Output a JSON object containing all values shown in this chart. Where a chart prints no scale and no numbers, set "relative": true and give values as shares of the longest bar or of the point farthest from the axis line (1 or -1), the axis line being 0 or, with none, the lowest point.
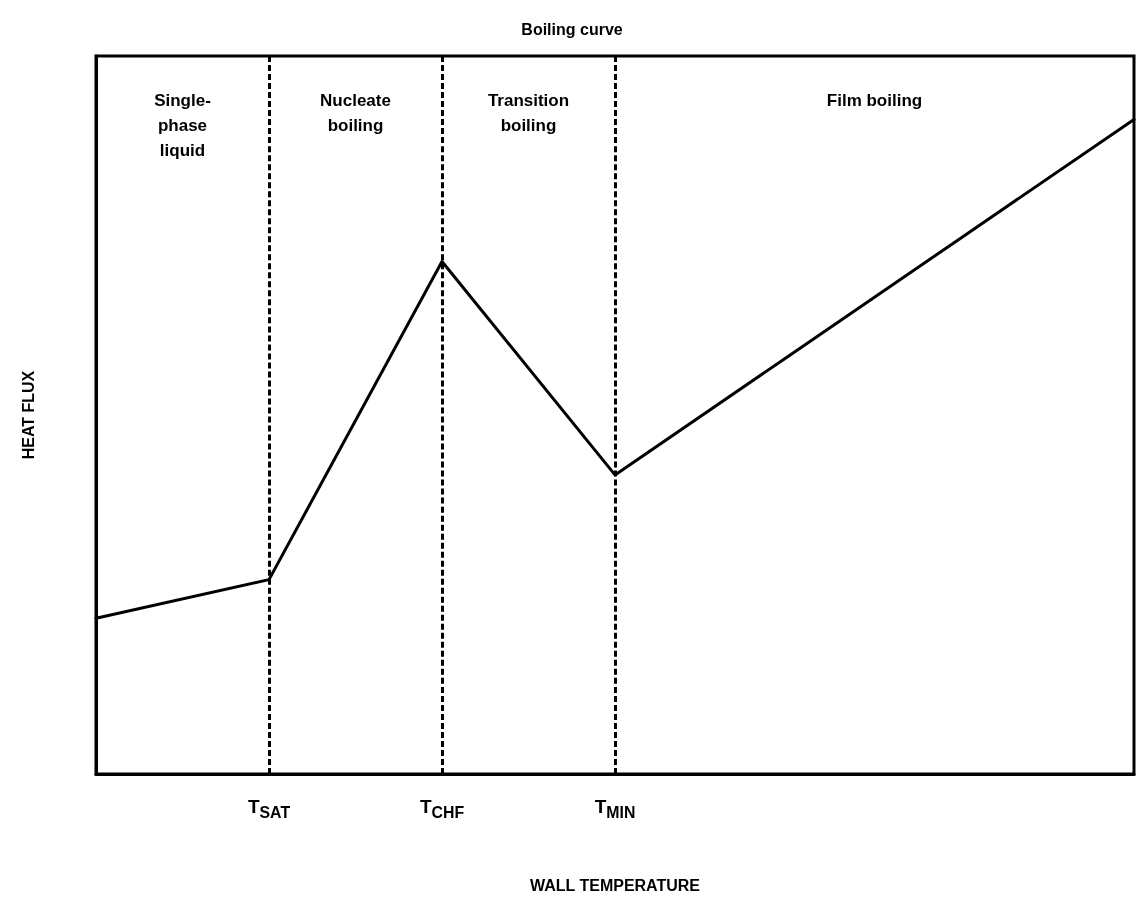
{
  "chart_data": {
    "type": "line",
    "title": "Boiling curve",
    "xlabel": "WALL TEMPERATURE",
    "ylabel": "HEAT FLUX",
    "relative": true,
    "categories": [
      null,
      "T$_{SAT}$",
      "T$_{CHF}$",
      "T$_{MIN}$",
      null,
      null,
      null
    ],
    "series": [
      {
        "color": "#000000",
        "values": [
          0.238,
          0.297,
          0.783,
          0.457,
          0.638,
          0.819,
          1
        ]
      }
    ],
    "ref_lines": [
      {
        "axis": "x",
        "value": "T$_{SAT}$",
        "color": "#000000",
        "line_style": "dashed"
      },
      {
        "axis": "x",
        "value": "T$_{CHF}$",
        "color": "#000000",
        "line_style": "dashed"
      },
      {
        "axis": "x",
        "value": "T$_{MIN}$",
        "color": "#000000",
        "line_style": "dashed"
      }
    ],
    "annotations": [
      "Single-\nphase\nliquid",
      "Nucleate\nboiling",
      "Transition\nboiling",
      "Film boiling"
    ],
    "grid": false,
    "marker": "none",
    "line_style": "solid"
  }
}
